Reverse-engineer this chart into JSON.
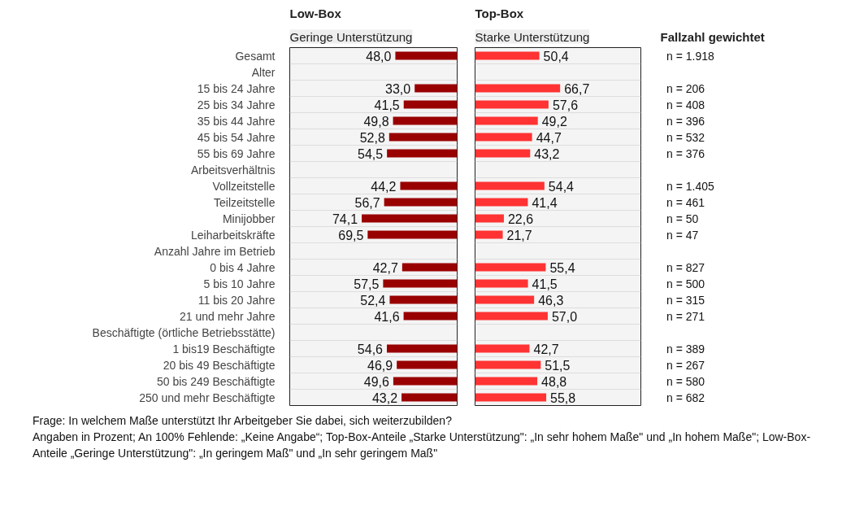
{
  "chart_data": [
    {
      "type": "bar",
      "orientation": "horizontal",
      "title": "Low-Box",
      "subtitle": "Geringe Unterstützung",
      "tick_labels": "y",
      "color": "#990000",
      "xlim": [
        130,
        0
      ],
      "categories": [
        "Gesamt",
        "Alter",
        "15 bis 24 Jahre",
        "25 bis 34 Jahre",
        "35 bis 44 Jahre",
        "45 bis 54 Jahre",
        "55 bis 69 Jahre",
        "Arbeitsverhältnis",
        "Vollzeitstelle",
        "Teilzeitstelle",
        "Minijobber",
        "Leiharbeitskräfte",
        "Anzahl Jahre im Betrieb",
        "0 bis 4 Jahre",
        "5 bis 10 Jahre",
        "11 bis 20 Jahre",
        "21 und mehr Jahre",
        "Beschäftigte (örtliche Betriebsstätte)",
        "1 bis19 Beschäftigte",
        "20 bis 49 Beschäftigte",
        "50 bis 249 Beschäftigte",
        "250 und mehr Beschäftigte"
      ],
      "values": [
        48.0,
        null,
        33.0,
        41.5,
        49.8,
        52.8,
        54.5,
        null,
        44.2,
        56.7,
        74.1,
        69.5,
        null,
        42.7,
        57.5,
        52.4,
        41.6,
        null,
        54.6,
        46.9,
        49.6,
        43.2
      ],
      "value_labels": [
        "48,0",
        null,
        "33,0",
        "41,5",
        "49,8",
        "52,8",
        "54,5",
        null,
        "44,2",
        "56,7",
        "74,1",
        "69,5",
        null,
        "42,7",
        "57,5",
        "52,4",
        "41,6",
        null,
        "54,6",
        "46,9",
        "49,6",
        "43,2"
      ],
      "annotations": [
        "Frage: In welchem Maße unterstützt Ihr Arbeitgeber Sie dabei, sich weiterzubilden?",
        "Angaben in Prozent; An 100% Fehlende: „Keine Angabe“; Top-Box-Anteile „Starke Unterstützung\": „In sehr hohem Maße\" und „In hohem Maße\"; Low-Box-Anteile „Geringe Unterstützung\": „In geringem Maß\" und „In sehr geringem Maß\""
      ]
    },
    {
      "type": "bar",
      "orientation": "horizontal",
      "title": "Top-Box",
      "subtitle": "Starke Unterstützung",
      "tick_labels": false,
      "color": "#ff3333",
      "xlim": [
        0,
        130
      ],
      "values": [
        50.4,
        null,
        66.7,
        57.6,
        49.2,
        44.7,
        43.2,
        null,
        54.4,
        41.4,
        22.6,
        21.7,
        null,
        55.4,
        41.5,
        46.3,
        57.0,
        null,
        42.7,
        51.5,
        48.8,
        55.8
      ],
      "value_labels": [
        "50,4",
        null,
        "66,7",
        "57,6",
        "49,2",
        "44,7",
        "43,2",
        null,
        "54,4",
        "41,4",
        "22,6",
        "21,7",
        null,
        "55,4",
        "41,5",
        "46,3",
        "57,0",
        null,
        "42,7",
        "51,5",
        "48,8",
        "55,8"
      ]
    },
    {
      "type": "other",
      "title": "Fallzahl gewichtet",
      "annotations": [
        "n = 1.918",
        "n = 206",
        "n = 408",
        "n = 396",
        "n = 532",
        "n = 376",
        "n = 1.405",
        "n = 461",
        "n = 50",
        "n = 47",
        "n = 827",
        "n = 500",
        "n = 315",
        "n = 271",
        "n = 389",
        "n = 267",
        "n = 580",
        "n = 682"
      ]
    }
  ]
}
